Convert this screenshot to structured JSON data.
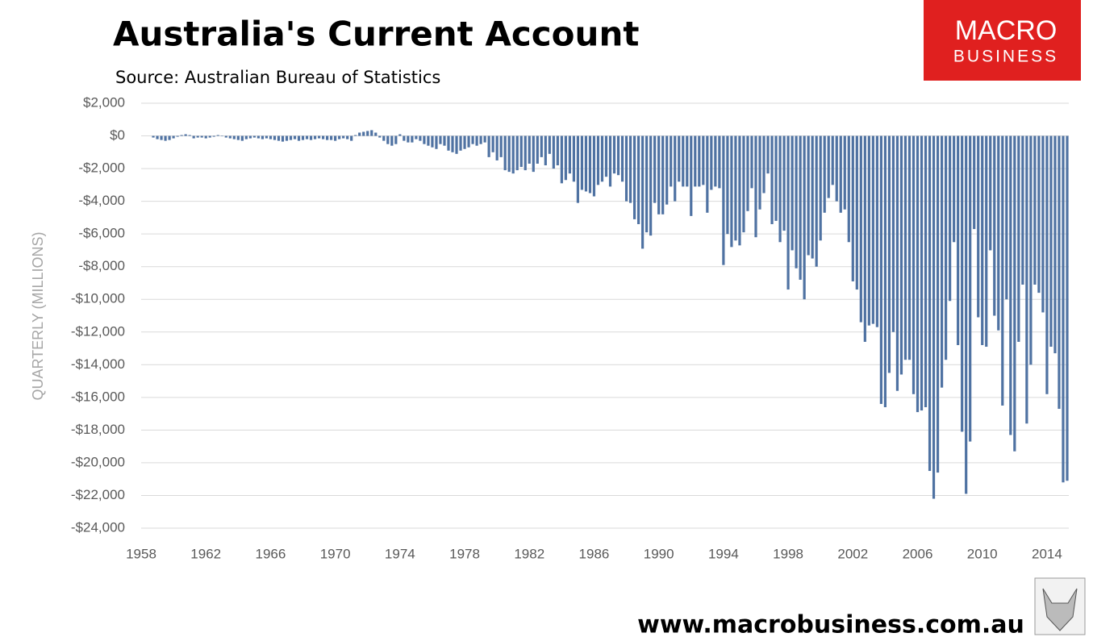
{
  "chart_data": {
    "type": "bar",
    "title": "Australia's Current Account",
    "subtitle": "Source: Australian Bureau of Statistics",
    "y_label": "QUARTERLY (MILLIONS)",
    "logo": {
      "line1": "MACRO",
      "line2": "BUSINESS"
    },
    "footer": "www.macrobusiness.com.au",
    "color": "#4f72a2",
    "grid": true,
    "xlim": [
      1958,
      2015.35
    ],
    "xticks": [
      1958,
      1962,
      1966,
      1970,
      1974,
      1978,
      1982,
      1986,
      1990,
      1994,
      1998,
      2002,
      2006,
      2010,
      2014
    ],
    "ylim": [
      -24000,
      2000
    ],
    "yticks": [
      {
        "value": 2000,
        "label": "$2,000"
      },
      {
        "value": 0,
        "label": "$0"
      },
      {
        "value": -2000,
        "label": "-$2,000"
      },
      {
        "value": -4000,
        "label": "-$4,000"
      },
      {
        "value": -6000,
        "label": "-$6,000"
      },
      {
        "value": -8000,
        "label": "-$8,000"
      },
      {
        "value": -10000,
        "label": "-$10,000"
      },
      {
        "value": -12000,
        "label": "-$12,000"
      },
      {
        "value": -14000,
        "label": "-$14,000"
      },
      {
        "value": -16000,
        "label": "-$16,000"
      },
      {
        "value": -18000,
        "label": "-$18,000"
      },
      {
        "value": -20000,
        "label": "-$20,000"
      },
      {
        "value": -22000,
        "label": "-$22,000"
      },
      {
        "value": -24000,
        "label": "-$24,000"
      }
    ],
    "x": [
      1958.75,
      1959,
      1959.25,
      1959.5,
      1959.75,
      1960,
      1960.25,
      1960.5,
      1960.75,
      1961,
      1961.25,
      1961.5,
      1961.75,
      1962,
      1962.25,
      1962.5,
      1962.75,
      1963,
      1963.25,
      1963.5,
      1963.75,
      1964,
      1964.25,
      1964.5,
      1964.75,
      1965,
      1965.25,
      1965.5,
      1965.75,
      1966,
      1966.25,
      1966.5,
      1966.75,
      1967,
      1967.25,
      1967.5,
      1967.75,
      1968,
      1968.25,
      1968.5,
      1968.75,
      1969,
      1969.25,
      1969.5,
      1969.75,
      1970,
      1970.25,
      1970.5,
      1970.75,
      1971,
      1971.25,
      1971.5,
      1971.75,
      1972,
      1972.25,
      1972.5,
      1972.75,
      1973,
      1973.25,
      1973.5,
      1973.75,
      1974,
      1974.25,
      1974.5,
      1974.75,
      1975,
      1975.25,
      1975.5,
      1975.75,
      1976,
      1976.25,
      1976.5,
      1976.75,
      1977,
      1977.25,
      1977.5,
      1977.75,
      1978,
      1978.25,
      1978.5,
      1978.75,
      1979,
      1979.25,
      1979.5,
      1979.75,
      1980,
      1980.25,
      1980.5,
      1980.75,
      1981,
      1981.25,
      1981.5,
      1981.75,
      1982,
      1982.25,
      1982.5,
      1982.75,
      1983,
      1983.25,
      1983.5,
      1983.75,
      1984,
      1984.25,
      1984.5,
      1984.75,
      1985,
      1985.25,
      1985.5,
      1985.75,
      1986,
      1986.25,
      1986.5,
      1986.75,
      1987,
      1987.25,
      1987.5,
      1987.75,
      1988,
      1988.25,
      1988.5,
      1988.75,
      1989,
      1989.25,
      1989.5,
      1989.75,
      1990,
      1990.25,
      1990.5,
      1990.75,
      1991,
      1991.25,
      1991.5,
      1991.75,
      1992,
      1992.25,
      1992.5,
      1992.75,
      1993,
      1993.25,
      1993.5,
      1993.75,
      1994,
      1994.25,
      1994.5,
      1994.75,
      1995,
      1995.25,
      1995.5,
      1995.75,
      1996,
      1996.25,
      1996.5,
      1996.75,
      1997,
      1997.25,
      1997.5,
      1997.75,
      1998,
      1998.25,
      1998.5,
      1998.75,
      1999,
      1999.25,
      1999.5,
      1999.75,
      2000,
      2000.25,
      2000.5,
      2000.75,
      2001,
      2001.25,
      2001.5,
      2001.75,
      2002,
      2002.25,
      2002.5,
      2002.75,
      2003,
      2003.25,
      2003.5,
      2003.75,
      2004,
      2004.25,
      2004.5,
      2004.75,
      2005,
      2005.25,
      2005.5,
      2005.75,
      2006,
      2006.25,
      2006.5,
      2006.75,
      2007,
      2007.25,
      2007.5,
      2007.75,
      2008,
      2008.25,
      2008.5,
      2008.75,
      2009,
      2009.25,
      2009.5,
      2009.75,
      2010,
      2010.25,
      2010.5,
      2010.75,
      2011,
      2011.25,
      2011.5,
      2011.75,
      2012,
      2012.25,
      2012.5,
      2012.75,
      2013,
      2013.25,
      2013.5,
      2013.75,
      2014,
      2014.25,
      2014.5,
      2014.75,
      2015,
      2015.25
    ],
    "values": [
      -100,
      -200,
      -250,
      -300,
      -250,
      -150,
      -50,
      50,
      100,
      50,
      -150,
      -100,
      -100,
      -150,
      -100,
      -50,
      50,
      0,
      -100,
      -150,
      -200,
      -250,
      -300,
      -200,
      -150,
      -100,
      -150,
      -200,
      -150,
      -200,
      -250,
      -300,
      -350,
      -300,
      -250,
      -200,
      -300,
      -250,
      -200,
      -250,
      -200,
      -150,
      -200,
      -250,
      -250,
      -300,
      -200,
      -150,
      -200,
      -300,
      50,
      200,
      250,
      300,
      350,
      200,
      -100,
      -300,
      -500,
      -600,
      -500,
      100,
      -300,
      -400,
      -400,
      -200,
      -300,
      -500,
      -600,
      -700,
      -800,
      -500,
      -600,
      -900,
      -1000,
      -1100,
      -900,
      -800,
      -700,
      -500,
      -600,
      -500,
      -400,
      -1300,
      -1000,
      -1500,
      -1300,
      -2100,
      -2200,
      -2300,
      -2100,
      -1900,
      -2100,
      -1700,
      -2200,
      -1700,
      -1300,
      -1800,
      -1100,
      -2000,
      -1800,
      -2900,
      -2700,
      -2300,
      -2800,
      -4100,
      -3300,
      -3400,
      -3500,
      -3700,
      -3000,
      -2800,
      -2500,
      -3100,
      -2300,
      -2400,
      -2800,
      -4000,
      -4100,
      -5100,
      -5400,
      -6900,
      -5900,
      -6100,
      -4100,
      -4800,
      -4800,
      -4200,
      -3100,
      -4000,
      -2800,
      -3100,
      -3100,
      -4900,
      -3100,
      -3100,
      -3000,
      -4700,
      -3300,
      -3100,
      -3200,
      -7900,
      -6000,
      -6800,
      -6400,
      -6700,
      -5900,
      -4600,
      -3200,
      -6200,
      -4500,
      -3500,
      -2300,
      -5400,
      -5200,
      -6500,
      -5800,
      -9400,
      -7000,
      -8100,
      -8800,
      -10000,
      -7300,
      -7500,
      -8000,
      -6400,
      -4700,
      -3800,
      -3000,
      -4000,
      -4700,
      -4500,
      -6500,
      -8900,
      -9400,
      -11400,
      -12600,
      -11600,
      -11500,
      -11700,
      -16400,
      -16600,
      -14500,
      -12000,
      -15600,
      -14600,
      -13700,
      -13700,
      -15800,
      -16900,
      -16800,
      -16600,
      -20500,
      -22200,
      -20600,
      -15400,
      -13700,
      -10100,
      -6500,
      -12800,
      -18100,
      -21900,
      -18700,
      -5700,
      -11100,
      -12800,
      -12900,
      -7000,
      -11000,
      -11900,
      -16500,
      -10000,
      -18300,
      -19300,
      -12600,
      -9100,
      -17600,
      -14000,
      -9100,
      -9600,
      -10800,
      -15800,
      -12900,
      -13300,
      -16700,
      -21200,
      -21100
    ]
  }
}
